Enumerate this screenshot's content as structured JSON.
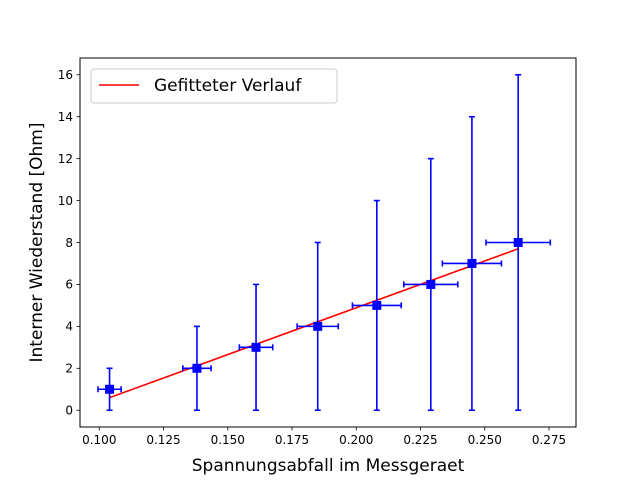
{
  "chart_data": {
    "type": "scatter",
    "title": "",
    "xlabel": "Spannungsabfall im Messgeraet",
    "ylabel": "Interner Wiederstand [Ohm]",
    "xlim": [
      0.0925,
      0.2855
    ],
    "ylim": [
      -0.8,
      16.8
    ],
    "x_ticks": [
      0.1,
      0.125,
      0.15,
      0.175,
      0.2,
      0.225,
      0.25,
      0.275
    ],
    "x_tick_labels": [
      "0.100",
      "0.125",
      "0.150",
      "0.175",
      "0.200",
      "0.225",
      "0.250",
      "0.275"
    ],
    "y_ticks": [
      0,
      2,
      4,
      6,
      8,
      10,
      12,
      14,
      16
    ],
    "y_tick_labels": [
      "0",
      "2",
      "4",
      "6",
      "8",
      "10",
      "12",
      "14",
      "16"
    ],
    "grid": false,
    "legend_position": "top-left",
    "series": [
      {
        "kind": "errorbar",
        "color": "#0000ff",
        "marker": "square",
        "x": [
          0.104,
          0.138,
          0.161,
          0.185,
          0.208,
          0.229,
          0.245,
          0.263
        ],
        "y": [
          1,
          2,
          3,
          4,
          5,
          6,
          7,
          8
        ],
        "xerr": [
          0.0045,
          0.0055,
          0.0065,
          0.008,
          0.0095,
          0.0105,
          0.0115,
          0.0125
        ],
        "yerr": [
          1,
          2,
          3,
          4,
          5,
          6,
          7,
          8
        ]
      },
      {
        "kind": "line",
        "name": "Gefitteter Verlauf",
        "color": "#ff0000",
        "x": [
          0.104,
          0.263
        ],
        "y": [
          0.6,
          7.7
        ]
      }
    ]
  }
}
